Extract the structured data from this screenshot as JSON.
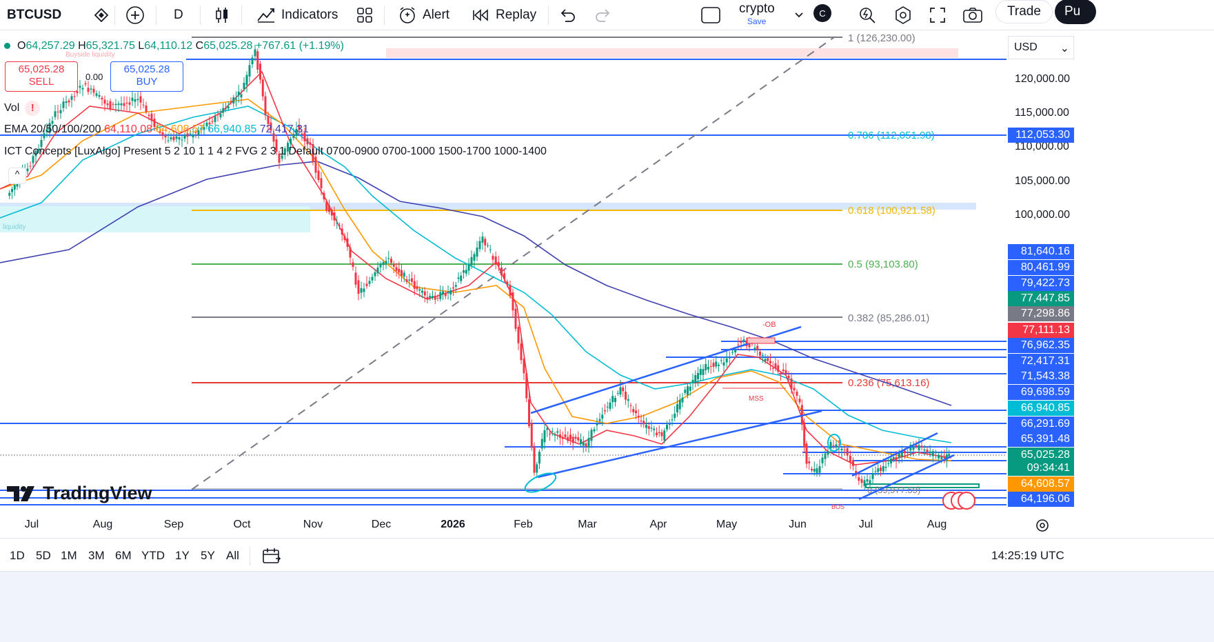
{
  "toolbar": {
    "symbol": "BTCUSD",
    "interval": "D",
    "indicators_label": "Indicators",
    "alert_label": "Alert",
    "replay_label": "Replay",
    "layout_name": "crypto",
    "save_label": "Save",
    "account_initial": "C",
    "trade_label": "Trade",
    "publish_label": "Pu"
  },
  "legend": {
    "open_label": "O",
    "open": "64,257.29",
    "high_label": "H",
    "high": "65,321.75",
    "low_label": "L",
    "low": "64,110.12",
    "close_label": "C",
    "close": "65,025.28",
    "change": "+767.61 (+1.19%)",
    "sell_price": "65,025.28",
    "sell_label": "SELL",
    "spread": "0.00",
    "buy_price": "65,025.28",
    "buy_label": "BUY",
    "vol_label": "Vol",
    "vol_warning": "!",
    "ema_label": "EMA 20/50/100/200",
    "ema20": "64,110.08",
    "ema50": "64,608.57",
    "ema100": "66,940.85",
    "ema200": "72,417.31",
    "ict_label": "ICT Concepts [LuxAlgo] Present 5 2 10 1 1 4 2 FVG 2 3 1 Default 0700-0900 0700-1000 1500-1700 1000-1400",
    "collapse_icon": "^"
  },
  "chart_annotations": {
    "buyside_liquidity": "Buyside liquidity",
    "liquidity": "liquidity",
    "ob_label": "-OB",
    "mss_label": "MSS",
    "fib_1": "1 (126,230.00)",
    "fib_0786": "0.786 (112,051.98)",
    "fib_0618": "0.618 (100,921.58)",
    "fib_05": "0.5 (93,103.80)",
    "fib_0382": "0.382 (85,286.01)",
    "fib_0236": "0.236 (75,613.16)",
    "fib_0": "0 (59,977.59)",
    "bos_label": "BOS"
  },
  "price_scale": {
    "currency": "USD",
    "ticks": [
      "120,000.00",
      "115,000.00",
      "110,000.00",
      "105,000.00",
      "100,000.00"
    ],
    "badges": [
      {
        "value": "112,053.30",
        "color": "#2962ff"
      },
      {
        "value": "81,640.16",
        "color": "#2962ff"
      },
      {
        "value": "80,461.99",
        "color": "#2962ff"
      },
      {
        "value": "79,422.73",
        "color": "#2962ff"
      },
      {
        "value": "77,447.85",
        "color": "#089981"
      },
      {
        "value": "77,298.86",
        "color": "#787b86"
      },
      {
        "value": "77,111.13",
        "color": "#f23645"
      },
      {
        "value": "76,962.35",
        "color": "#2962ff"
      },
      {
        "value": "72,417.31",
        "color": "#2962ff"
      },
      {
        "value": "71,543.38",
        "color": "#2962ff"
      },
      {
        "value": "69,698.59",
        "color": "#2962ff"
      },
      {
        "value": "66,940.85",
        "color": "#00bcd4"
      },
      {
        "value": "66,291.69",
        "color": "#2962ff"
      },
      {
        "value": "65,391.48",
        "color": "#2962ff"
      },
      {
        "value": "65,025.28",
        "color": "#089981"
      },
      {
        "value": "09:34:41",
        "color": "#089981"
      },
      {
        "value": "64,608.57",
        "color": "#ff9800"
      },
      {
        "value": "64,196.06",
        "color": "#2962ff"
      }
    ]
  },
  "time_axis": [
    "Jul",
    "Aug",
    "Sep",
    "Oct",
    "Nov",
    "Dec",
    "2026",
    "Feb",
    "Mar",
    "Apr",
    "May",
    "Jun",
    "Jul",
    "Aug"
  ],
  "bottom_bar": {
    "ranges": [
      "1D",
      "5D",
      "1M",
      "3M",
      "6M",
      "YTD",
      "1Y",
      "5Y",
      "All"
    ],
    "clock": "14:25:19 UTC"
  },
  "brand": "TradingView",
  "colors": {
    "up": "#089981",
    "down": "#f23645",
    "ema20": "#f23645",
    "ema50": "#ff9800",
    "ema100": "#00bcd4",
    "ema200": "#3f3fb0",
    "level": "#2962ff"
  },
  "chart_data": {
    "type": "line",
    "symbol": "BTCUSD",
    "interval": "D",
    "x": [
      "Jul",
      "Aug",
      "Sep",
      "Oct",
      "Nov",
      "Dec",
      "2026",
      "Feb",
      "Mar",
      "Apr",
      "May",
      "Jun",
      "Jul",
      "Aug"
    ],
    "series": [
      {
        "name": "BTCUSD",
        "values": [
          108000,
          117000,
          111000,
          121000,
          102000,
          90000,
          88000,
          72000,
          66000,
          71000,
          77000,
          66000,
          64000,
          65025
        ]
      }
    ],
    "fibonacci": [
      {
        "level": "1",
        "value": 126230.0
      },
      {
        "level": "0.786",
        "value": 112051.98
      },
      {
        "level": "0.618",
        "value": 100921.58
      },
      {
        "level": "0.5",
        "value": 93103.8
      },
      {
        "level": "0.382",
        "value": 85286.01
      },
      {
        "level": "0.236",
        "value": 75613.16
      },
      {
        "level": "0",
        "value": 59977.59
      }
    ],
    "last_price": 65025.28,
    "ylim": [
      59000,
      127500
    ]
  }
}
